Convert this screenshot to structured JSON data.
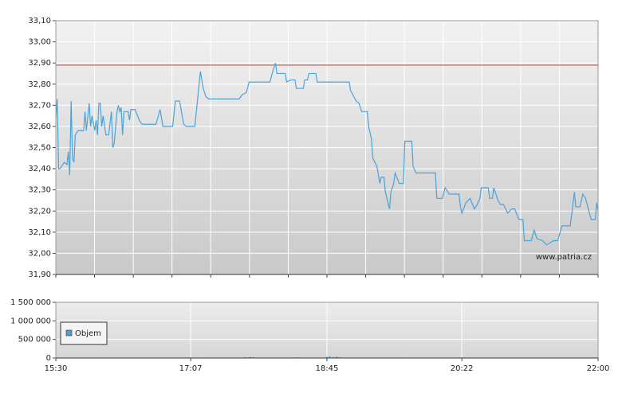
{
  "chart_data": [
    {
      "type": "line",
      "x": [
        "15:30",
        "15:31",
        "15:32",
        "15:33",
        "15:36",
        "15:38",
        "15:39",
        "15:40",
        "15:41",
        "15:42",
        "15:43",
        "15:44",
        "15:46",
        "15:50",
        "15:51",
        "15:52",
        "15:54",
        "15:55",
        "15:56",
        "15:58",
        "15:59",
        "16:00",
        "16:01",
        "16:02",
        "16:03",
        "16:04",
        "16:06",
        "16:08",
        "16:10",
        "16:11",
        "16:12",
        "16:14",
        "16:15",
        "16:16",
        "16:17",
        "16:18",
        "16:19",
        "16:22",
        "16:23",
        "16:24",
        "16:27",
        "16:30",
        "16:32",
        "16:42",
        "16:45",
        "16:47",
        "16:54",
        "16:56",
        "16:59",
        "17:02",
        "17:04",
        "17:10",
        "17:12",
        "17:14",
        "17:16",
        "17:18",
        "17:20",
        "17:42",
        "17:44",
        "17:47",
        "17:49",
        "18:04",
        "18:06",
        "18:08",
        "18:09",
        "18:15",
        "18:16",
        "18:19",
        "18:22",
        "18:23",
        "18:28",
        "18:29",
        "18:31",
        "18:32",
        "18:37",
        "18:38",
        "18:55",
        "18:56",
        "19:01",
        "19:02",
        "19:06",
        "19:08",
        "19:10",
        "19:14",
        "19:15",
        "19:17",
        "19:18",
        "19:21",
        "19:23",
        "19:24",
        "19:26",
        "19:27",
        "19:30",
        "19:31",
        "19:33",
        "19:34",
        "19:37",
        "19:40",
        "19:41",
        "19:46",
        "19:47",
        "19:49",
        "19:53",
        "20:03",
        "20:04",
        "20:08",
        "20:10",
        "20:13",
        "20:20",
        "20:21",
        "20:22",
        "20:25",
        "20:28",
        "20:31",
        "20:33",
        "20:35",
        "20:36",
        "20:41",
        "20:42",
        "20:44",
        "20:45",
        "20:48",
        "20:50",
        "20:52",
        "20:55",
        "20:58",
        "21:00",
        "21:03",
        "21:06",
        "21:07",
        "21:12",
        "21:14",
        "21:16",
        "21:20",
        "21:23",
        "21:28",
        "21:31",
        "21:34",
        "21:40",
        "21:43",
        "21:44",
        "21:47",
        "21:49",
        "21:51",
        "21:53",
        "21:55",
        "21:58",
        "21:59",
        "22:00"
      ],
      "values": [
        32.64,
        32.73,
        32.4,
        32.4,
        32.43,
        32.42,
        32.48,
        32.37,
        32.72,
        32.45,
        32.43,
        32.56,
        32.58,
        32.58,
        32.67,
        32.58,
        32.71,
        32.6,
        32.65,
        32.58,
        32.63,
        32.56,
        32.71,
        32.71,
        32.6,
        32.65,
        32.56,
        32.56,
        32.67,
        32.5,
        32.52,
        32.67,
        32.7,
        32.67,
        32.69,
        32.56,
        32.67,
        32.67,
        32.63,
        32.68,
        32.68,
        32.63,
        32.61,
        32.61,
        32.68,
        32.6,
        32.6,
        32.72,
        32.72,
        32.61,
        32.6,
        32.6,
        32.73,
        32.86,
        32.78,
        32.74,
        32.73,
        32.73,
        32.75,
        32.76,
        32.81,
        32.81,
        32.86,
        32.9,
        32.85,
        32.85,
        32.81,
        32.82,
        32.82,
        32.78,
        32.78,
        32.82,
        32.82,
        32.85,
        32.85,
        32.81,
        32.81,
        32.81,
        32.81,
        32.77,
        32.72,
        32.71,
        32.67,
        32.67,
        32.6,
        32.54,
        32.45,
        32.41,
        32.33,
        32.36,
        32.36,
        32.29,
        32.21,
        32.29,
        32.33,
        32.38,
        32.33,
        32.33,
        32.53,
        32.53,
        32.41,
        32.38,
        32.38,
        32.38,
        32.26,
        32.26,
        32.31,
        32.28,
        32.28,
        32.22,
        32.19,
        32.24,
        32.26,
        32.21,
        32.23,
        32.26,
        32.31,
        32.31,
        32.26,
        32.26,
        32.31,
        32.25,
        32.23,
        32.23,
        32.19,
        32.21,
        32.21,
        32.16,
        32.16,
        32.06,
        32.06,
        32.11,
        32.07,
        32.06,
        32.04,
        32.06,
        32.06,
        32.13,
        32.13,
        32.29,
        32.22,
        32.22,
        32.28,
        32.26,
        32.21,
        32.16,
        32.16,
        32.24,
        32.2
      ],
      "color": "#4aa3d8",
      "reference_line": 32.89,
      "reference_color": "#c0392b",
      "watermark": "www.patria.cz",
      "xlim": [
        "15:30",
        "22:00"
      ],
      "ylim": [
        31.9,
        33.1
      ],
      "yticks": [
        {
          "value": 31.9,
          "label": "31,90"
        },
        {
          "value": 32.0,
          "label": "32,00"
        },
        {
          "value": 32.1,
          "label": "32,10"
        },
        {
          "value": 32.2,
          "label": "32,20"
        },
        {
          "value": 32.3,
          "label": "32,30"
        },
        {
          "value": 32.4,
          "label": "32,40"
        },
        {
          "value": 32.5,
          "label": "32,50"
        },
        {
          "value": 32.6,
          "label": "32,60"
        },
        {
          "value": 32.7,
          "label": "32,70"
        },
        {
          "value": 32.8,
          "label": "32,80"
        },
        {
          "value": 32.9,
          "label": "32,90"
        },
        {
          "value": 33.0,
          "label": "33,00"
        },
        {
          "value": 33.1,
          "label": "33,10"
        }
      ],
      "grid": true
    },
    {
      "type": "bar",
      "x": [
        "17:46",
        "17:48",
        "17:50",
        "17:52",
        "18:22",
        "18:24",
        "18:45",
        "18:47",
        "18:50",
        "18:52",
        "18:54"
      ],
      "series": [
        {
          "name": "Objem",
          "color": "#4f9fd6",
          "values": [
            20000,
            15000,
            25000,
            18000,
            12000,
            20000,
            30000,
            45000,
            25000,
            35000,
            20000
          ]
        }
      ],
      "xlim": [
        "15:30",
        "22:00"
      ],
      "xticks": [
        "15:30",
        "17:07",
        "18:45",
        "20:22",
        "22:00"
      ],
      "ylim": [
        0,
        1500000
      ],
      "yticks": [
        0,
        {
          "value": 500000,
          "label": "500 000"
        },
        {
          "value": 1000000,
          "label": "1 000 000"
        },
        {
          "value": 1500000,
          "label": "1 500 000"
        }
      ],
      "grid": true,
      "legend": "left"
    }
  ]
}
